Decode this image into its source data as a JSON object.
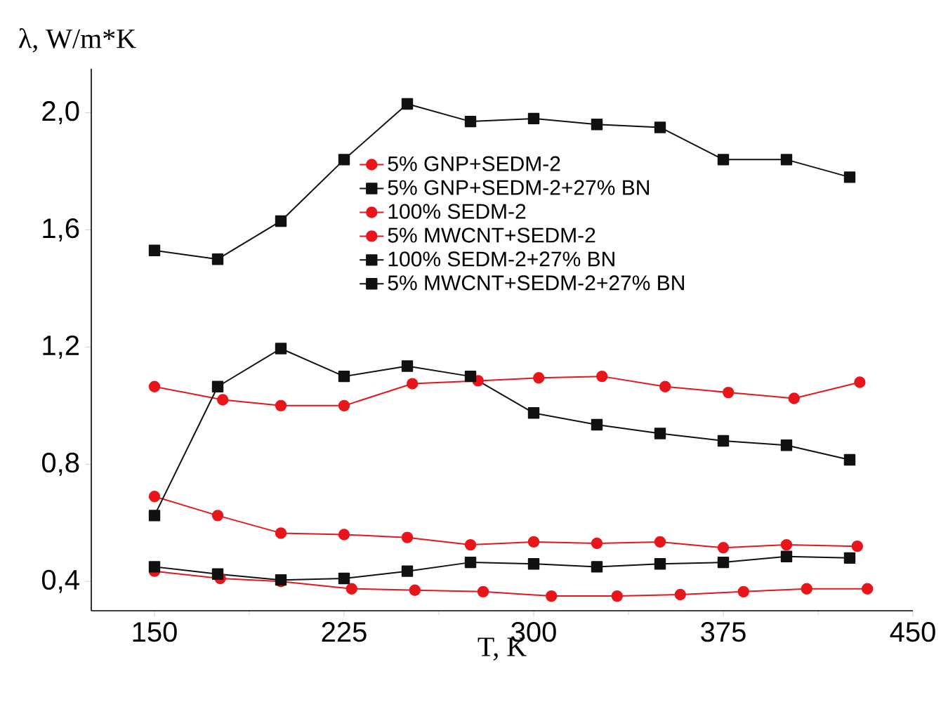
{
  "chart_data": {
    "type": "line",
    "xlabel": "T, K",
    "ylabel": "λ, W/m*K",
    "xlim": [
      125,
      450
    ],
    "ylim": [
      0.3,
      2.15
    ],
    "xticks": [
      150,
      225,
      300,
      375,
      450
    ],
    "yticks": [
      {
        "value": 0.4,
        "label": "0,4"
      },
      {
        "value": 0.8,
        "label": "0,8"
      },
      {
        "value": 1.2,
        "label": "1,2"
      },
      {
        "value": 1.6,
        "label": "1,6"
      },
      {
        "value": 2.0,
        "label": "2,0"
      }
    ],
    "grid": false,
    "legend": "top",
    "line_style": "solid",
    "series": [
      {
        "name": "5% GNP+SEDM-2",
        "color": "#e8161b",
        "marker": "circle",
        "x": [
          150,
          177,
          200,
          225,
          252,
          278,
          302,
          327,
          352,
          377,
          403,
          429
        ],
        "values": [
          1.065,
          1.02,
          1.0,
          1.0,
          1.075,
          1.085,
          1.095,
          1.1,
          1.065,
          1.045,
          1.025,
          1.08
        ]
      },
      {
        "name": "5% GNP+SEDM-2+27% BN",
        "color": "#111111",
        "marker": "square",
        "x": [
          150,
          175,
          200,
          225,
          250,
          275,
          300,
          325,
          350,
          375,
          400,
          425
        ],
        "values": [
          1.53,
          1.5,
          1.63,
          1.84,
          2.03,
          1.97,
          1.98,
          1.96,
          1.95,
          1.84,
          1.84,
          1.78
        ]
      },
      {
        "name": "100% SEDM-2",
        "color": "#e8161b",
        "marker": "circle",
        "x": [
          150,
          176,
          200,
          228,
          253,
          280,
          307,
          333,
          358,
          383,
          408,
          432
        ],
        "values": [
          0.435,
          0.41,
          0.4,
          0.375,
          0.37,
          0.365,
          0.35,
          0.35,
          0.355,
          0.365,
          0.375,
          0.375
        ]
      },
      {
        "name": "5% MWCNT+SEDM-2",
        "color": "#e8161b",
        "marker": "circle",
        "x": [
          150,
          175,
          200,
          225,
          250,
          275,
          300,
          325,
          350,
          375,
          400,
          428
        ],
        "values": [
          0.69,
          0.625,
          0.565,
          0.56,
          0.55,
          0.525,
          0.535,
          0.53,
          0.535,
          0.515,
          0.525,
          0.52
        ]
      },
      {
        "name": "100% SEDM-2+27% BN",
        "color": "#111111",
        "marker": "square",
        "x": [
          150,
          175,
          200,
          225,
          250,
          275,
          300,
          325,
          350,
          375,
          400,
          425
        ],
        "values": [
          0.45,
          0.425,
          0.405,
          0.41,
          0.435,
          0.465,
          0.46,
          0.45,
          0.46,
          0.465,
          0.485,
          0.48
        ]
      },
      {
        "name": "5% MWCNT+SEDM-2+27% BN",
        "color": "#111111",
        "marker": "square",
        "x": [
          150,
          175,
          200,
          225,
          250,
          275,
          300,
          325,
          350,
          375,
          400,
          425
        ],
        "values": [
          0.625,
          1.065,
          1.195,
          1.1,
          1.135,
          1.1,
          0.975,
          0.935,
          0.905,
          0.88,
          0.865,
          0.815
        ]
      }
    ]
  }
}
